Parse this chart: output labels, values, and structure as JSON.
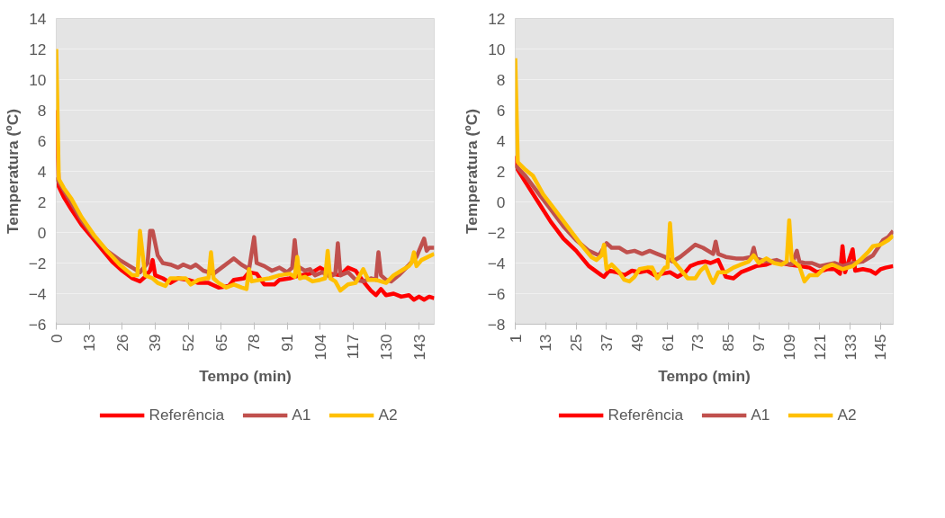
{
  "chart_data": [
    {
      "type": "line",
      "xlabel": "Tempo (min)",
      "ylabel": "Temperatura (ºC)",
      "xlim": [
        0,
        149
      ],
      "xticks": [
        0,
        13,
        26,
        39,
        52,
        65,
        78,
        91,
        104,
        117,
        130,
        143
      ],
      "ylim": [
        -6,
        14
      ],
      "yticks": [
        -6,
        -4,
        -2,
        0,
        2,
        4,
        6,
        8,
        10,
        12,
        14
      ],
      "grid": "y",
      "legend": "bottom",
      "line_style": "solid",
      "marker": "none",
      "series": [
        {
          "name": "Referência",
          "color": "#ff0000",
          "x": [
            0,
            1,
            3,
            6,
            10,
            14,
            18,
            22,
            26,
            30,
            33,
            35,
            37,
            38,
            39,
            42,
            45,
            48,
            52,
            56,
            60,
            64,
            68,
            70,
            74,
            76,
            79,
            82,
            86,
            88,
            92,
            96,
            100,
            104,
            108,
            112,
            115,
            118,
            121,
            124,
            126,
            128,
            130,
            133,
            136,
            139,
            141,
            143,
            145,
            147,
            149
          ],
          "values": [
            8,
            3,
            2.3,
            1.5,
            0.5,
            -0.3,
            -1.1,
            -1.9,
            -2.5,
            -3.0,
            -3.2,
            -2.9,
            -2.5,
            -1.8,
            -2.8,
            -3.0,
            -3.3,
            -3.0,
            -3.1,
            -3.3,
            -3.3,
            -3.6,
            -3.5,
            -3.1,
            -3.0,
            -2.6,
            -2.7,
            -3.4,
            -3.4,
            -3.1,
            -3.0,
            -2.8,
            -2.7,
            -2.3,
            -2.7,
            -2.8,
            -2.3,
            -2.5,
            -3.2,
            -3.8,
            -4.1,
            -3.7,
            -4.1,
            -4.0,
            -4.2,
            -4.1,
            -4.4,
            -4.2,
            -4.4,
            -4.2,
            -4.3
          ]
        },
        {
          "name": "A1",
          "color": "#c0504d",
          "x": [
            0,
            1,
            5,
            10,
            15,
            20,
            25,
            30,
            33,
            36,
            37,
            38,
            40,
            42,
            45,
            48,
            50,
            53,
            55,
            58,
            62,
            66,
            70,
            73,
            76,
            78,
            79,
            82,
            85,
            88,
            91,
            93,
            94,
            95,
            98,
            100,
            102,
            105,
            108,
            110,
            111,
            112,
            115,
            118,
            121,
            124,
            126,
            127,
            128,
            130,
            132,
            135,
            138,
            142,
            145,
            146,
            147,
            149
          ],
          "values": [
            3.6,
            3.3,
            2.2,
            0.8,
            -0.3,
            -1.2,
            -1.8,
            -2.3,
            -2.6,
            -2.0,
            0.1,
            0.1,
            -1.5,
            -2.0,
            -2.1,
            -2.3,
            -2.1,
            -2.3,
            -2.1,
            -2.5,
            -2.7,
            -2.2,
            -1.7,
            -2.1,
            -2.4,
            -0.3,
            -2.0,
            -2.2,
            -2.5,
            -2.3,
            -2.6,
            -2.3,
            -0.5,
            -2.2,
            -2.5,
            -2.4,
            -2.8,
            -2.6,
            -2.9,
            -2.7,
            -0.7,
            -2.8,
            -2.6,
            -3.1,
            -3.2,
            -3.0,
            -3.1,
            -1.3,
            -2.8,
            -3.1,
            -3.2,
            -2.8,
            -2.3,
            -1.6,
            -0.4,
            -1.2,
            -1.0,
            -1.0
          ]
        },
        {
          "name": "A2",
          "color": "#ffc000",
          "x": [
            0,
            1,
            3,
            6,
            10,
            15,
            20,
            25,
            30,
            32,
            33,
            35,
            38,
            40,
            43,
            45,
            48,
            51,
            53,
            56,
            59,
            60,
            61,
            62,
            64,
            67,
            70,
            73,
            75,
            76,
            77,
            80,
            84,
            88,
            92,
            94,
            95,
            96,
            98,
            101,
            104,
            106,
            107,
            108,
            110,
            112,
            115,
            118,
            121,
            123,
            126,
            130,
            133,
            136,
            139,
            140,
            141,
            142,
            144,
            149
          ],
          "values": [
            12,
            3.5,
            2.9,
            2.2,
            1.0,
            -0.2,
            -1.2,
            -2.1,
            -2.8,
            -2.8,
            0.1,
            -2.8,
            -3.0,
            -3.3,
            -3.5,
            -3.0,
            -3.0,
            -3.0,
            -3.4,
            -3.1,
            -3.0,
            -3.0,
            -1.3,
            -3.0,
            -3.3,
            -3.6,
            -3.4,
            -3.6,
            -3.7,
            -2.4,
            -3.2,
            -3.1,
            -3.0,
            -2.8,
            -2.7,
            -2.9,
            -1.6,
            -3.0,
            -2.9,
            -3.2,
            -3.1,
            -3.0,
            -1.2,
            -3.0,
            -3.2,
            -3.8,
            -3.4,
            -3.3,
            -2.4,
            -3.1,
            -3.1,
            -3.3,
            -2.8,
            -2.5,
            -2.2,
            -2.0,
            -1.3,
            -2.2,
            -1.8,
            -1.4
          ]
        }
      ]
    },
    {
      "type": "line",
      "xlabel": "Tempo (min)",
      "ylabel": "Temperatura (ºC)",
      "xlim": [
        1,
        150
      ],
      "xticks": [
        1,
        13,
        25,
        37,
        49,
        61,
        73,
        85,
        97,
        109,
        121,
        133,
        145
      ],
      "ylim": [
        -8,
        12
      ],
      "yticks": [
        -8,
        -6,
        -4,
        -2,
        0,
        2,
        4,
        6,
        8,
        10,
        12
      ],
      "grid": "y",
      "legend": "bottom",
      "line_style": "solid",
      "marker": "none",
      "series": [
        {
          "name": "Referência",
          "color": "#ff0000",
          "x": [
            1,
            2,
            5,
            10,
            15,
            20,
            25,
            30,
            35,
            36,
            38,
            41,
            44,
            47,
            50,
            53,
            56,
            59,
            62,
            65,
            68,
            70,
            73,
            76,
            78,
            81,
            84,
            87,
            90,
            93,
            96,
            100,
            103,
            106,
            109,
            113,
            117,
            120,
            124,
            127,
            129,
            130,
            131,
            134,
            135,
            138,
            141,
            143,
            145,
            147,
            150
          ],
          "values": [
            3,
            2.1,
            1.3,
            0,
            -1.3,
            -2.4,
            -3.2,
            -4.2,
            -4.8,
            -4.9,
            -4.5,
            -4.6,
            -4.8,
            -4.5,
            -4.6,
            -4.5,
            -4.8,
            -4.7,
            -4.6,
            -4.9,
            -4.6,
            -4.2,
            -4.0,
            -3.9,
            -4.0,
            -3.8,
            -4.9,
            -5.0,
            -4.6,
            -4.4,
            -4.2,
            -4.1,
            -3.9,
            -4.0,
            -4.1,
            -4.2,
            -4.3,
            -4.6,
            -4.4,
            -4.4,
            -4.7,
            -2.9,
            -4.6,
            -3.1,
            -4.5,
            -4.4,
            -4.5,
            -4.7,
            -4.4,
            -4.3,
            -4.2
          ]
        },
        {
          "name": "A1",
          "color": "#c0504d",
          "x": [
            1,
            5,
            10,
            15,
            20,
            25,
            30,
            34,
            37,
            39,
            42,
            45,
            48,
            51,
            54,
            57,
            60,
            63,
            66,
            69,
            72,
            75,
            78,
            79,
            80,
            81,
            84,
            88,
            91,
            94,
            95,
            96,
            98,
            101,
            104,
            107,
            110,
            112,
            113,
            115,
            118,
            121,
            124,
            127,
            130,
            134,
            138,
            142,
            146,
            148,
            150
          ],
          "values": [
            2.4,
            1.7,
            0.6,
            -0.5,
            -1.6,
            -2.5,
            -3.2,
            -3.5,
            -2.7,
            -3.0,
            -3.0,
            -3.3,
            -3.2,
            -3.4,
            -3.2,
            -3.4,
            -3.6,
            -3.9,
            -3.6,
            -3.2,
            -2.8,
            -3.0,
            -3.3,
            -3.4,
            -2.6,
            -3.4,
            -3.6,
            -3.7,
            -3.7,
            -3.6,
            -3.0,
            -3.7,
            -3.8,
            -3.9,
            -3.8,
            -4.0,
            -4.1,
            -3.2,
            -3.9,
            -4.0,
            -4.0,
            -4.2,
            -4.1,
            -4.0,
            -4.2,
            -4.0,
            -3.9,
            -3.5,
            -2.5,
            -2.3,
            -1.9
          ]
        },
        {
          "name": "A2",
          "color": "#ffc000",
          "x": [
            1,
            2,
            5,
            8,
            12,
            17,
            22,
            27,
            31,
            33,
            35,
            36,
            37,
            39,
            42,
            44,
            46,
            48,
            50,
            53,
            55,
            57,
            60,
            61,
            62,
            63,
            66,
            69,
            72,
            74,
            76,
            78,
            79,
            81,
            84,
            87,
            90,
            93,
            95,
            97,
            100,
            103,
            106,
            108,
            109,
            110,
            113,
            115,
            117,
            120,
            123,
            126,
            130,
            134,
            137,
            140,
            142,
            145,
            148,
            150
          ],
          "values": [
            9.4,
            2.6,
            2.1,
            1.7,
            0.5,
            -0.6,
            -1.7,
            -2.8,
            -3.6,
            -3.8,
            -3.5,
            -2.8,
            -4.4,
            -4.1,
            -4.6,
            -5.1,
            -5.2,
            -4.9,
            -4.4,
            -4.3,
            -4.3,
            -5.0,
            -4.3,
            -4.3,
            -1.4,
            -3.8,
            -4.4,
            -5.0,
            -5.0,
            -4.5,
            -4.2,
            -5.0,
            -5.3,
            -4.6,
            -4.6,
            -4.3,
            -4.1,
            -3.9,
            -3.5,
            -4.0,
            -3.7,
            -4.0,
            -4.1,
            -3.9,
            -1.2,
            -3.8,
            -4.2,
            -5.2,
            -4.8,
            -4.8,
            -4.3,
            -4.1,
            -4.4,
            -4.2,
            -3.8,
            -3.3,
            -2.9,
            -2.8,
            -2.5,
            -2.2
          ]
        }
      ]
    }
  ]
}
